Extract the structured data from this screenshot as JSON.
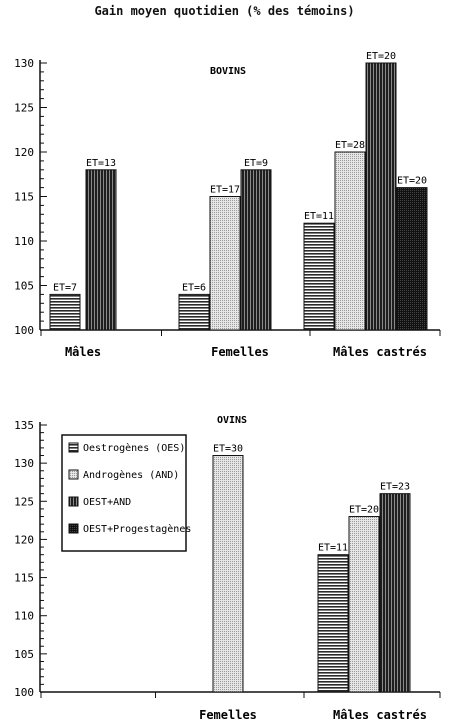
{
  "page_title": "Gain moyen quotidien (% des témoins)",
  "chart_data": [
    {
      "type": "bar",
      "panel_label": "BOVINS",
      "ylim": [
        100,
        130
      ],
      "yticks": [
        100,
        105,
        110,
        115,
        120,
        125,
        130
      ],
      "categories": [
        "Mâles",
        "Femelles",
        "Mâles castrés"
      ],
      "series": [
        {
          "name": "Oestrogènes (OES)",
          "values": [
            104,
            104,
            112
          ],
          "labels": [
            "ET=7",
            "ET=6",
            "ET=11"
          ]
        },
        {
          "name": "Androgènes (AND)",
          "values": [
            null,
            115,
            120
          ],
          "labels": [
            null,
            "ET=17",
            "ET=28"
          ]
        },
        {
          "name": "OEST+AND",
          "values": [
            118,
            118,
            130
          ],
          "labels": [
            "ET=13",
            "ET=9",
            "ET=20"
          ]
        },
        {
          "name": "OEST+Progestagènes",
          "values": [
            null,
            null,
            116
          ],
          "labels": [
            null,
            null,
            "ET=20"
          ]
        }
      ],
      "grid": false
    },
    {
      "type": "bar",
      "panel_label": "OVINS",
      "ylim": [
        100,
        135
      ],
      "yticks": [
        100,
        105,
        110,
        115,
        120,
        125,
        130,
        135
      ],
      "categories": [
        "",
        "Femelles",
        "Mâles castrés"
      ],
      "series": [
        {
          "name": "Oestrogènes (OES)",
          "values": [
            null,
            null,
            118
          ],
          "labels": [
            null,
            null,
            "ET=11"
          ]
        },
        {
          "name": "Androgènes (AND)",
          "values": [
            null,
            131,
            123
          ],
          "labels": [
            null,
            "ET=30",
            "ET=20"
          ]
        },
        {
          "name": "OEST+AND",
          "values": [
            null,
            null,
            126
          ],
          "labels": [
            null,
            null,
            "ET=23"
          ]
        },
        {
          "name": "OEST+Progestagènes",
          "values": [
            null,
            null,
            null
          ],
          "labels": [
            null,
            null,
            null
          ]
        }
      ],
      "legend_placement": "top-left",
      "grid": false
    }
  ]
}
